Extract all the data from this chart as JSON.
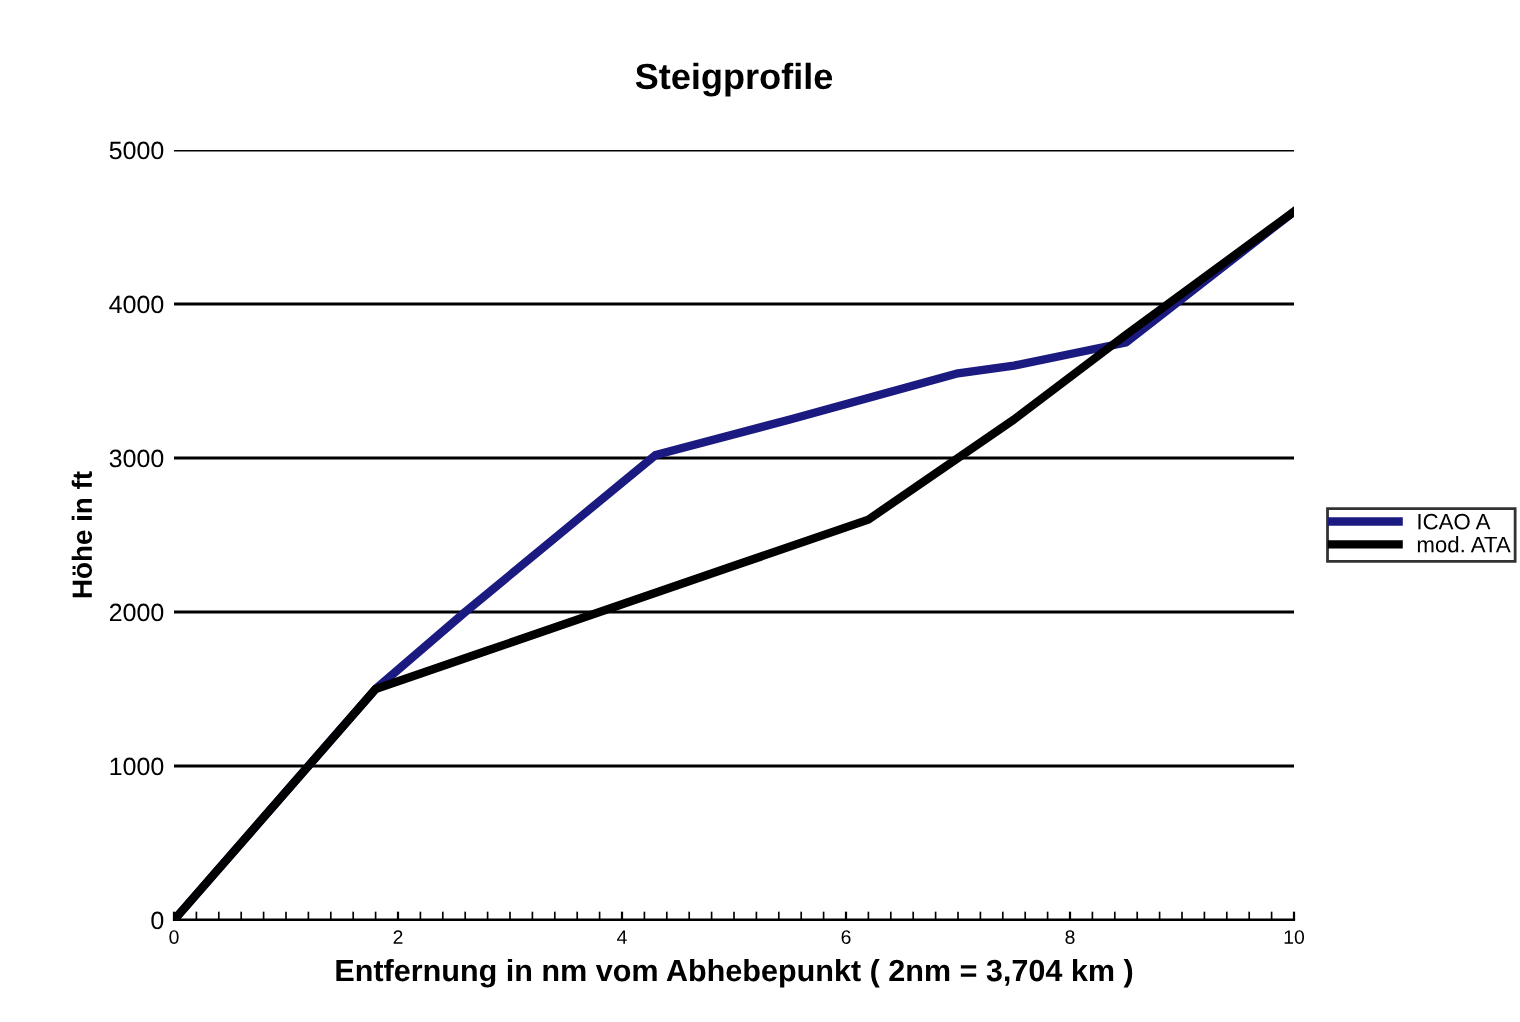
{
  "chart_data": {
    "type": "line",
    "title": "Steigprofile",
    "xlabel": "Entfernung in nm vom Abhebepunkt ( 2nm = 3,704 km )",
    "ylabel": "Höhe in ft",
    "xlim": [
      0,
      10
    ],
    "xticks": [
      0,
      2,
      4,
      6,
      8,
      10
    ],
    "ylim": [
      0,
      5000
    ],
    "yticks": [
      0,
      1000,
      2000,
      3000,
      4000,
      5000
    ],
    "grid": "y",
    "legend": "right",
    "series": [
      {
        "name": "ICAO A",
        "color": "#1a1a80",
        "x": [
          0,
          1.8,
          2.6,
          3.6,
          4.3,
          5.5,
          7.0,
          7.5,
          8.5,
          10
        ],
        "values": [
          0,
          1500,
          2000,
          2600,
          3020,
          3250,
          3550,
          3600,
          3750,
          4600
        ]
      },
      {
        "name": "mod. ATA",
        "color": "#000000",
        "x": [
          0,
          1.8,
          2.8,
          3.8,
          5.0,
          6.2,
          7.0,
          7.5,
          8.5,
          10
        ],
        "values": [
          0,
          1500,
          1750,
          2000,
          2300,
          2600,
          3000,
          3250,
          3800,
          4600
        ]
      }
    ]
  }
}
